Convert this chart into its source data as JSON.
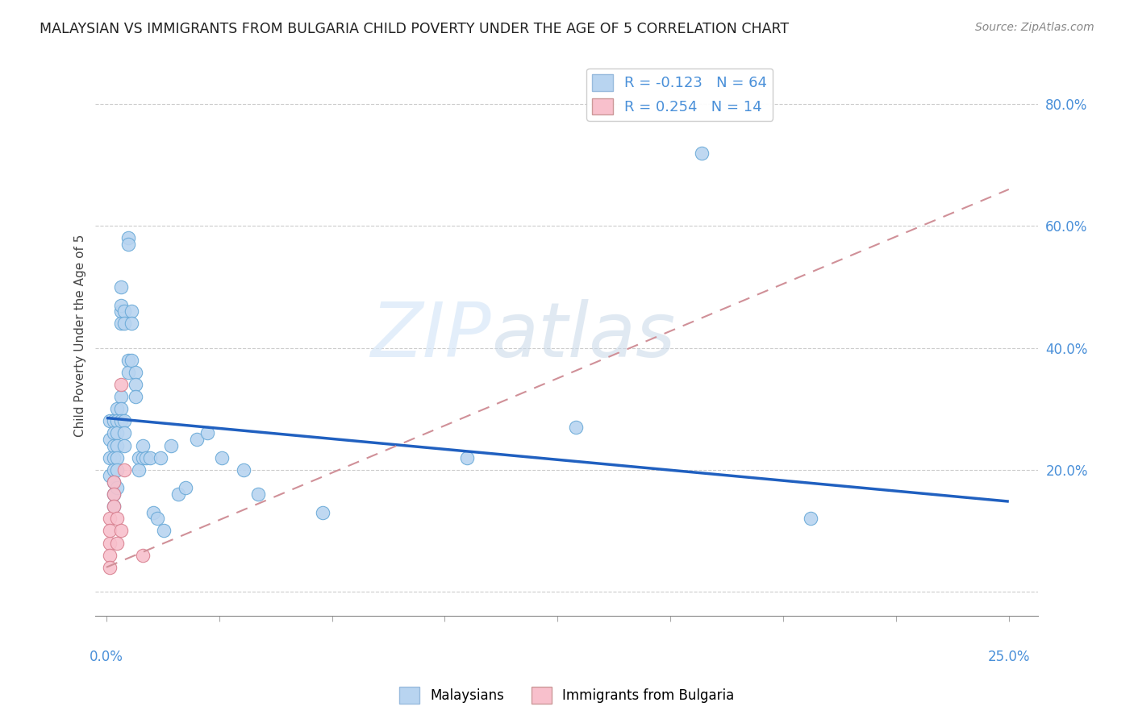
{
  "title": "MALAYSIAN VS IMMIGRANTS FROM BULGARIA CHILD POVERTY UNDER THE AGE OF 5 CORRELATION CHART",
  "source": "Source: ZipAtlas.com",
  "ylabel": "Child Poverty Under the Age of 5",
  "legend_label1": "Malaysians",
  "legend_label2": "Immigrants from Bulgaria",
  "R1": -0.123,
  "N1": 64,
  "R2": 0.254,
  "N2": 14,
  "color_blue": "#b8d4f0",
  "color_blue_edge": "#6aaad8",
  "color_blue_line": "#2060c0",
  "color_pink": "#f8c0cc",
  "color_pink_edge": "#d88090",
  "color_pink_line": "#d09098",
  "malaysians_x": [
    0.001,
    0.001,
    0.001,
    0.001,
    0.002,
    0.002,
    0.002,
    0.002,
    0.002,
    0.002,
    0.002,
    0.002,
    0.003,
    0.003,
    0.003,
    0.003,
    0.003,
    0.003,
    0.003,
    0.004,
    0.004,
    0.004,
    0.004,
    0.004,
    0.004,
    0.004,
    0.005,
    0.005,
    0.005,
    0.005,
    0.005,
    0.006,
    0.006,
    0.006,
    0.006,
    0.007,
    0.007,
    0.007,
    0.008,
    0.008,
    0.008,
    0.009,
    0.009,
    0.01,
    0.01,
    0.011,
    0.012,
    0.013,
    0.014,
    0.015,
    0.016,
    0.018,
    0.02,
    0.022,
    0.025,
    0.028,
    0.032,
    0.038,
    0.042,
    0.06,
    0.1,
    0.13,
    0.165,
    0.195
  ],
  "malaysians_y": [
    0.28,
    0.25,
    0.22,
    0.19,
    0.28,
    0.26,
    0.24,
    0.22,
    0.2,
    0.18,
    0.16,
    0.14,
    0.3,
    0.28,
    0.26,
    0.24,
    0.22,
    0.2,
    0.17,
    0.32,
    0.3,
    0.28,
    0.46,
    0.44,
    0.47,
    0.5,
    0.46,
    0.44,
    0.28,
    0.26,
    0.24,
    0.58,
    0.57,
    0.38,
    0.36,
    0.46,
    0.44,
    0.38,
    0.36,
    0.34,
    0.32,
    0.22,
    0.2,
    0.22,
    0.24,
    0.22,
    0.22,
    0.13,
    0.12,
    0.22,
    0.1,
    0.24,
    0.16,
    0.17,
    0.25,
    0.26,
    0.22,
    0.2,
    0.16,
    0.13,
    0.22,
    0.27,
    0.72,
    0.12
  ],
  "bulgaria_x": [
    0.001,
    0.001,
    0.001,
    0.001,
    0.001,
    0.002,
    0.002,
    0.002,
    0.003,
    0.003,
    0.004,
    0.004,
    0.005,
    0.01
  ],
  "bulgaria_y": [
    0.08,
    0.06,
    0.04,
    0.12,
    0.1,
    0.18,
    0.16,
    0.14,
    0.12,
    0.08,
    0.34,
    0.1,
    0.2,
    0.06
  ],
  "mal_line_x": [
    0.0,
    0.25
  ],
  "mal_line_y": [
    0.285,
    0.148
  ],
  "bul_line_x": [
    0.0,
    0.25
  ],
  "bul_line_y": [
    0.04,
    0.66
  ],
  "xlim": [
    -0.003,
    0.258
  ],
  "ylim": [
    -0.04,
    0.88
  ],
  "yticks": [
    0.0,
    0.2,
    0.4,
    0.6,
    0.8
  ],
  "ytick_labels": [
    "",
    "20.0%",
    "40.0%",
    "60.0%",
    "80.0%"
  ],
  "xtick_minor": [
    0.0,
    0.03125,
    0.0625,
    0.09375,
    0.125,
    0.15625,
    0.1875,
    0.21875,
    0.25
  ]
}
